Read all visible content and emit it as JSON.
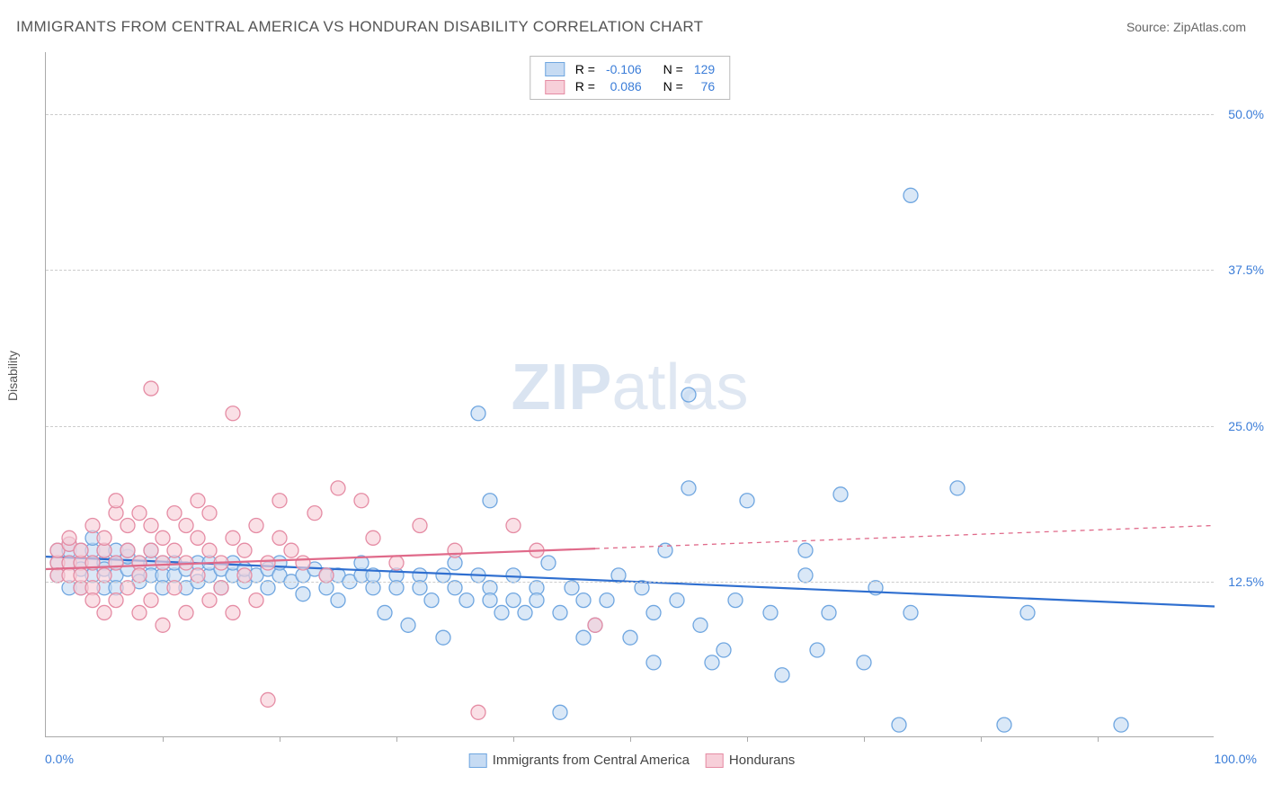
{
  "title": "IMMIGRANTS FROM CENTRAL AMERICA VS HONDURAN DISABILITY CORRELATION CHART",
  "source_label": "Source: ",
  "source_name": "ZipAtlas.com",
  "watermark_a": "ZIP",
  "watermark_b": "atlas",
  "y_axis_label": "Disability",
  "chart": {
    "type": "scatter",
    "xlim": [
      0,
      100
    ],
    "ylim": [
      0,
      55
    ],
    "x_tick_labels": {
      "min": "0.0%",
      "max": "100.0%"
    },
    "y_ticks": [
      {
        "v": 12.5,
        "label": "12.5%"
      },
      {
        "v": 25.0,
        "label": "25.0%"
      },
      {
        "v": 37.5,
        "label": "37.5%"
      },
      {
        "v": 50.0,
        "label": "50.0%"
      }
    ],
    "x_minor_ticks": [
      10,
      20,
      30,
      40,
      50,
      60,
      70,
      80,
      90
    ],
    "background_color": "#ffffff",
    "grid_color": "#cccccc",
    "marker_radius": 8,
    "marker_stroke_width": 1.3,
    "trend_line_width": 2.2,
    "series": [
      {
        "key": "central_america",
        "label": "Immigrants from Central America",
        "fill": "#c6dbf3",
        "stroke": "#6fa6e0",
        "line_color": "#2f6fd0",
        "R": "-0.106",
        "N": "129",
        "trend": {
          "x0": 0,
          "y0": 14.5,
          "x1": 100,
          "y1": 10.5,
          "solid_to_x": 100
        },
        "points": [
          [
            1,
            15
          ],
          [
            1,
            14
          ],
          [
            1,
            13
          ],
          [
            2,
            15
          ],
          [
            2,
            14
          ],
          [
            2,
            12
          ],
          [
            2,
            15.5
          ],
          [
            3,
            14
          ],
          [
            3,
            13.5
          ],
          [
            3,
            12
          ],
          [
            3,
            15
          ],
          [
            4,
            14
          ],
          [
            4,
            13
          ],
          [
            4,
            15
          ],
          [
            4,
            16
          ],
          [
            5,
            12
          ],
          [
            5,
            14
          ],
          [
            5,
            15
          ],
          [
            5,
            13.5
          ],
          [
            6,
            14
          ],
          [
            6,
            13
          ],
          [
            6,
            15
          ],
          [
            6,
            12
          ],
          [
            7,
            13.5
          ],
          [
            7,
            14.5
          ],
          [
            7,
            15
          ],
          [
            8,
            13
          ],
          [
            8,
            14
          ],
          [
            8,
            12.5
          ],
          [
            9,
            14
          ],
          [
            9,
            13
          ],
          [
            9,
            15
          ],
          [
            10,
            14
          ],
          [
            10,
            13
          ],
          [
            10,
            12
          ],
          [
            11,
            13
          ],
          [
            11,
            14
          ],
          [
            12,
            13.5
          ],
          [
            12,
            12
          ],
          [
            13,
            14
          ],
          [
            13,
            12.5
          ],
          [
            14,
            13
          ],
          [
            14,
            14
          ],
          [
            15,
            13.5
          ],
          [
            15,
            12
          ],
          [
            16,
            13
          ],
          [
            16,
            14
          ],
          [
            17,
            12.5
          ],
          [
            17,
            13.5
          ],
          [
            18,
            13
          ],
          [
            19,
            12
          ],
          [
            19,
            13.5
          ],
          [
            20,
            13
          ],
          [
            20,
            14
          ],
          [
            21,
            12.5
          ],
          [
            22,
            13
          ],
          [
            22,
            11.5
          ],
          [
            23,
            13.5
          ],
          [
            24,
            12
          ],
          [
            24,
            13
          ],
          [
            25,
            13
          ],
          [
            25,
            11
          ],
          [
            26,
            12.5
          ],
          [
            27,
            13
          ],
          [
            27,
            14
          ],
          [
            28,
            12
          ],
          [
            28,
            13
          ],
          [
            29,
            10
          ],
          [
            30,
            13
          ],
          [
            30,
            12
          ],
          [
            31,
            9
          ],
          [
            32,
            13
          ],
          [
            32,
            12
          ],
          [
            33,
            11
          ],
          [
            34,
            13
          ],
          [
            34,
            8
          ],
          [
            35,
            14
          ],
          [
            35,
            12
          ],
          [
            36,
            11
          ],
          [
            37,
            13
          ],
          [
            37,
            26
          ],
          [
            38,
            12
          ],
          [
            38,
            11
          ],
          [
            38,
            19
          ],
          [
            39,
            10
          ],
          [
            40,
            13
          ],
          [
            40,
            11
          ],
          [
            41,
            10
          ],
          [
            42,
            12
          ],
          [
            42,
            11
          ],
          [
            43,
            14
          ],
          [
            44,
            10
          ],
          [
            44,
            2
          ],
          [
            45,
            12
          ],
          [
            46,
            11
          ],
          [
            46,
            8
          ],
          [
            47,
            9
          ],
          [
            48,
            11
          ],
          [
            49,
            13
          ],
          [
            50,
            8
          ],
          [
            51,
            12
          ],
          [
            52,
            10
          ],
          [
            52,
            6
          ],
          [
            53,
            15
          ],
          [
            54,
            11
          ],
          [
            55,
            20
          ],
          [
            55,
            27.5
          ],
          [
            56,
            9
          ],
          [
            57,
            6
          ],
          [
            58,
            7
          ],
          [
            59,
            11
          ],
          [
            60,
            19
          ],
          [
            62,
            10
          ],
          [
            63,
            5
          ],
          [
            65,
            13
          ],
          [
            65,
            15
          ],
          [
            66,
            7
          ],
          [
            67,
            10
          ],
          [
            68,
            19.5
          ],
          [
            70,
            6
          ],
          [
            71,
            12
          ],
          [
            73,
            1
          ],
          [
            74,
            43.5
          ],
          [
            74,
            10
          ],
          [
            78,
            20
          ],
          [
            82,
            1
          ],
          [
            84,
            10
          ],
          [
            92,
            1
          ]
        ]
      },
      {
        "key": "hondurans",
        "label": "Hondurans",
        "fill": "#f7cfd9",
        "stroke": "#e58ca4",
        "line_color": "#e06a8a",
        "R": "0.086",
        "N": "76",
        "trend": {
          "x0": 0,
          "y0": 13.5,
          "x1": 100,
          "y1": 17.0,
          "solid_to_x": 47
        },
        "points": [
          [
            1,
            14
          ],
          [
            1,
            15
          ],
          [
            1,
            13
          ],
          [
            2,
            14
          ],
          [
            2,
            13
          ],
          [
            2,
            15.5
          ],
          [
            2,
            16
          ],
          [
            3,
            12
          ],
          [
            3,
            14
          ],
          [
            3,
            15
          ],
          [
            3,
            13
          ],
          [
            4,
            17
          ],
          [
            4,
            14
          ],
          [
            4,
            12
          ],
          [
            4,
            11
          ],
          [
            5,
            15
          ],
          [
            5,
            10
          ],
          [
            5,
            13
          ],
          [
            5,
            16
          ],
          [
            6,
            18
          ],
          [
            6,
            14
          ],
          [
            6,
            11
          ],
          [
            6,
            19
          ],
          [
            7,
            12
          ],
          [
            7,
            15
          ],
          [
            7,
            17
          ],
          [
            8,
            14
          ],
          [
            8,
            10
          ],
          [
            8,
            18
          ],
          [
            8,
            13
          ],
          [
            9,
            15
          ],
          [
            9,
            11
          ],
          [
            9,
            17
          ],
          [
            9,
            28
          ],
          [
            10,
            14
          ],
          [
            10,
            16
          ],
          [
            10,
            9
          ],
          [
            11,
            12
          ],
          [
            11,
            18
          ],
          [
            11,
            15
          ],
          [
            12,
            14
          ],
          [
            12,
            10
          ],
          [
            12,
            17
          ],
          [
            13,
            13
          ],
          [
            13,
            19
          ],
          [
            13,
            16
          ],
          [
            14,
            15
          ],
          [
            14,
            11
          ],
          [
            14,
            18
          ],
          [
            15,
            14
          ],
          [
            15,
            12
          ],
          [
            16,
            16
          ],
          [
            16,
            10
          ],
          [
            16,
            26
          ],
          [
            17,
            15
          ],
          [
            17,
            13
          ],
          [
            18,
            17
          ],
          [
            18,
            11
          ],
          [
            19,
            14
          ],
          [
            19,
            3
          ],
          [
            20,
            16
          ],
          [
            20,
            19
          ],
          [
            21,
            15
          ],
          [
            22,
            14
          ],
          [
            23,
            18
          ],
          [
            24,
            13
          ],
          [
            25,
            20
          ],
          [
            27,
            19
          ],
          [
            28,
            16
          ],
          [
            30,
            14
          ],
          [
            32,
            17
          ],
          [
            35,
            15
          ],
          [
            37,
            2
          ],
          [
            40,
            17
          ],
          [
            42,
            15
          ],
          [
            47,
            9
          ]
        ]
      }
    ],
    "legend": {
      "labels": {
        "R": "R =",
        "N": "N ="
      }
    }
  }
}
